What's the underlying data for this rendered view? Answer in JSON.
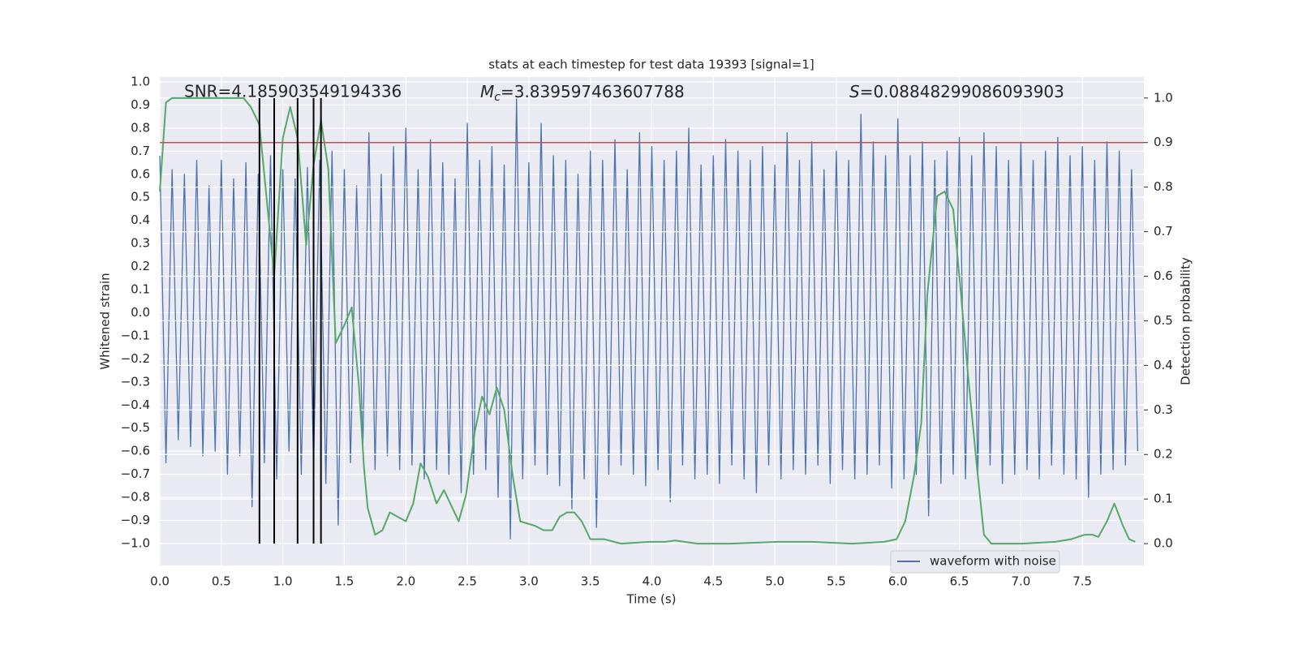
{
  "chart_data": {
    "type": "line",
    "title": "stats at each timestep for test data 19393 [signal=1]",
    "xlabel": "Time (s)",
    "ylabel": "Whitened strain",
    "y2label": "Detection probability",
    "xlim": [
      0,
      8.0
    ],
    "ylim": [
      -1.095,
      1.021
    ],
    "y2lim": [
      -0.049,
      1.047
    ],
    "grid": true,
    "legend": "lower right",
    "xticks": [
      {
        "value": 0,
        "label": "0.0"
      },
      0.5,
      {
        "value": 1,
        "label": "1.0"
      },
      1.5,
      {
        "value": 2,
        "label": "2.0"
      },
      2.5,
      {
        "value": 3,
        "label": "3.0"
      },
      3.5,
      {
        "value": 4,
        "label": "4.0"
      },
      4.5,
      {
        "value": 5,
        "label": "5.0"
      },
      5.5,
      {
        "value": 6,
        "label": "6.0"
      },
      6.5,
      {
        "value": 7,
        "label": "7.0"
      },
      7.5
    ],
    "yticks": [
      {
        "value": -1,
        "label": "−1.0"
      },
      {
        "value": -0.9,
        "label": "−0.9"
      },
      {
        "value": -0.8,
        "label": "−0.8"
      },
      {
        "value": -0.7,
        "label": "−0.7"
      },
      {
        "value": -0.6,
        "label": "−0.6"
      },
      {
        "value": -0.5,
        "label": "−0.5"
      },
      {
        "value": -0.4,
        "label": "−0.4"
      },
      {
        "value": -0.3,
        "label": "−0.3"
      },
      {
        "value": -0.2,
        "label": "−0.2"
      },
      {
        "value": -0.1,
        "label": "−0.1"
      },
      {
        "value": 0,
        "label": "0.0"
      },
      0.1,
      0.2,
      0.3,
      0.4,
      0.5,
      0.6,
      0.7,
      0.8,
      0.9,
      {
        "value": 1,
        "label": "1.0"
      }
    ],
    "y2ticks": [
      {
        "value": 0,
        "label": "0.0"
      },
      0.1,
      0.2,
      0.3,
      0.4,
      0.5,
      0.6,
      0.7,
      0.8,
      0.9,
      {
        "value": 1,
        "label": "1.0"
      }
    ],
    "annotations": [
      {
        "text": "SNR=4.185903549194336"
      },
      {
        "symbol": "M",
        "sub": "c",
        "text": "=3.839597463607788"
      },
      {
        "symbol": "S",
        "text": "=0.08848299086093903"
      }
    ],
    "series": [
      {
        "name": "waveform with noise",
        "color": "#4c72b0",
        "x": [
          0,
          0.05,
          0.1,
          0.15,
          0.2,
          0.25,
          0.3,
          0.35,
          0.4,
          0.45,
          0.5,
          0.55,
          0.6,
          0.65,
          0.7,
          0.75,
          0.8,
          0.85,
          0.9,
          0.95,
          1,
          1.05,
          1.1,
          1.15,
          1.2,
          1.25,
          1.3,
          1.35,
          1.4,
          1.45,
          1.5,
          1.55,
          1.6,
          1.65,
          1.7,
          1.75,
          1.8,
          1.85,
          1.9,
          1.95,
          2,
          2.05,
          2.1,
          2.15,
          2.2,
          2.25,
          2.3,
          2.35,
          2.4,
          2.45,
          2.5,
          2.55,
          2.6,
          2.65,
          2.7,
          2.75,
          2.8,
          2.85,
          2.9,
          2.95,
          3,
          3.05,
          3.1,
          3.15,
          3.2,
          3.25,
          3.3,
          3.35,
          3.4,
          3.45,
          3.5,
          3.55,
          3.6,
          3.65,
          3.7,
          3.75,
          3.8,
          3.85,
          3.9,
          3.95,
          4,
          4.05,
          4.1,
          4.15,
          4.2,
          4.25,
          4.3,
          4.35,
          4.4,
          4.45,
          4.5,
          4.55,
          4.6,
          4.65,
          4.7,
          4.75,
          4.8,
          4.85,
          4.9,
          4.95,
          5,
          5.05,
          5.1,
          5.15,
          5.2,
          5.25,
          5.3,
          5.35,
          5.4,
          5.45,
          5.5,
          5.55,
          5.6,
          5.65,
          5.7,
          5.75,
          5.8,
          5.85,
          5.9,
          5.95,
          6,
          6.05,
          6.1,
          6.15,
          6.2,
          6.25,
          6.3,
          6.35,
          6.4,
          6.45,
          6.5,
          6.55,
          6.6,
          6.65,
          6.7,
          6.75,
          6.8,
          6.85,
          6.9,
          6.95,
          7,
          7.05,
          7.1,
          7.15,
          7.2,
          7.25,
          7.3,
          7.35,
          7.4,
          7.45,
          7.5,
          7.55,
          7.6,
          7.65,
          7.7,
          7.75,
          7.8,
          7.85,
          7.9,
          7.95
        ],
        "values": [
          0.68,
          -0.65,
          0.62,
          -0.55,
          0.6,
          -0.58,
          0.66,
          -0.62,
          0.55,
          -0.6,
          0.66,
          -0.7,
          0.58,
          -0.62,
          0.65,
          -0.84,
          0.6,
          -0.65,
          0.68,
          -0.72,
          0.62,
          -0.6,
          0.58,
          -0.7,
          0.63,
          -0.66,
          0.66,
          -0.74,
          0.7,
          -0.92,
          0.62,
          -0.65,
          0.55,
          -0.6,
          0.78,
          -0.68,
          0.6,
          -0.62,
          0.72,
          -0.68,
          0.8,
          -0.66,
          0.62,
          -0.72,
          0.75,
          -0.68,
          0.65,
          -0.7,
          0.58,
          -0.78,
          0.82,
          -0.7,
          0.66,
          -0.68,
          0.72,
          -0.8,
          0.64,
          -0.98,
          0.93,
          -0.72,
          0.65,
          -0.66,
          0.82,
          -0.7,
          0.68,
          -0.75,
          0.66,
          -0.85,
          0.6,
          -0.72,
          0.7,
          -0.93,
          0.66,
          -0.7,
          0.75,
          -0.66,
          0.62,
          -0.7,
          0.78,
          -0.75,
          0.72,
          -0.68,
          0.66,
          -0.82,
          0.7,
          -0.66,
          0.8,
          -0.72,
          0.64,
          -0.7,
          0.68,
          -0.74,
          0.75,
          -0.66,
          0.7,
          -0.72,
          0.66,
          -0.78,
          0.72,
          -0.66,
          0.64,
          -0.72,
          0.78,
          -0.68,
          0.66,
          -0.7,
          0.74,
          -0.66,
          0.62,
          -0.74,
          0.7,
          -0.68,
          0.66,
          -0.72,
          0.86,
          -0.7,
          0.74,
          -0.66,
          0.68,
          -0.76,
          0.84,
          -0.72,
          0.68,
          -0.7,
          0.74,
          -0.88,
          0.66,
          -0.74,
          0.7,
          -0.7,
          0.76,
          -0.72,
          0.68,
          -0.7,
          0.78,
          -0.66,
          0.72,
          -0.74,
          0.66,
          -0.7,
          0.74,
          -0.68,
          0.66,
          -0.72,
          0.7,
          -0.66,
          0.76,
          -0.7,
          0.68,
          -0.72,
          0.72,
          -0.8,
          0.66,
          -0.7,
          0.74,
          -0.68,
          0.7,
          -0.66,
          0.62,
          -0.6
        ]
      },
      {
        "color": "#55a868",
        "axis": "y2",
        "x": [
          0,
          0.05,
          0.1,
          0.68,
          0.74,
          0.81,
          0.93,
          1,
          1.06,
          1.12,
          1.19,
          1.25,
          1.31,
          1.37,
          1.43,
          1.5,
          1.56,
          1.62,
          1.66,
          1.69,
          1.75,
          1.81,
          1.87,
          2,
          2.06,
          2.12,
          2.18,
          2.25,
          2.31,
          2.43,
          2.49,
          2.56,
          2.62,
          2.68,
          2.74,
          2.8,
          2.87,
          2.93,
          3.05,
          3.12,
          3.19,
          3.25,
          3.31,
          3.37,
          3.43,
          3.5,
          3.61,
          3.75,
          3.98,
          4.11,
          4.19,
          4.37,
          4.64,
          5.03,
          5.3,
          5.63,
          5.89,
          5.99,
          6.06,
          6.13,
          6.19,
          6.24,
          6.32,
          6.38,
          6.45,
          6.51,
          6.57,
          6.64,
          6.7,
          6.76,
          7.01,
          7.28,
          7.41,
          7.52,
          7.58,
          7.63,
          7.7,
          7.76,
          7.83,
          7.88,
          7.93
        ],
        "values": [
          0.79,
          0.99,
          1.0,
          1.0,
          0.98,
          0.94,
          0.6,
          0.91,
          0.98,
          0.91,
          0.67,
          0.85,
          0.95,
          0.84,
          0.45,
          0.49,
          0.53,
          0.35,
          0.17,
          0.08,
          0.02,
          0.03,
          0.07,
          0.05,
          0.09,
          0.18,
          0.15,
          0.09,
          0.12,
          0.05,
          0.11,
          0.25,
          0.33,
          0.29,
          0.35,
          0.3,
          0.15,
          0.05,
          0.04,
          0.03,
          0.03,
          0.06,
          0.07,
          0.07,
          0.05,
          0.01,
          0.01,
          0.0,
          0.004,
          0.004,
          0.007,
          0.0,
          0.0,
          0.004,
          0.004,
          0.0,
          0.004,
          0.01,
          0.05,
          0.15,
          0.27,
          0.56,
          0.78,
          0.79,
          0.75,
          0.57,
          0.38,
          0.18,
          0.02,
          0.0,
          0.0,
          0.004,
          0.01,
          0.02,
          0.02,
          0.015,
          0.05,
          0.09,
          0.04,
          0.01,
          0.004
        ]
      }
    ],
    "hline": {
      "value": 0.9,
      "axis": "y2",
      "color": "#c44e52"
    },
    "vlines": {
      "x": [
        0.81,
        0.93,
        1.12,
        1.25,
        1.31
      ],
      "y2": [
        0,
        1
      ],
      "color": "#000000"
    }
  }
}
